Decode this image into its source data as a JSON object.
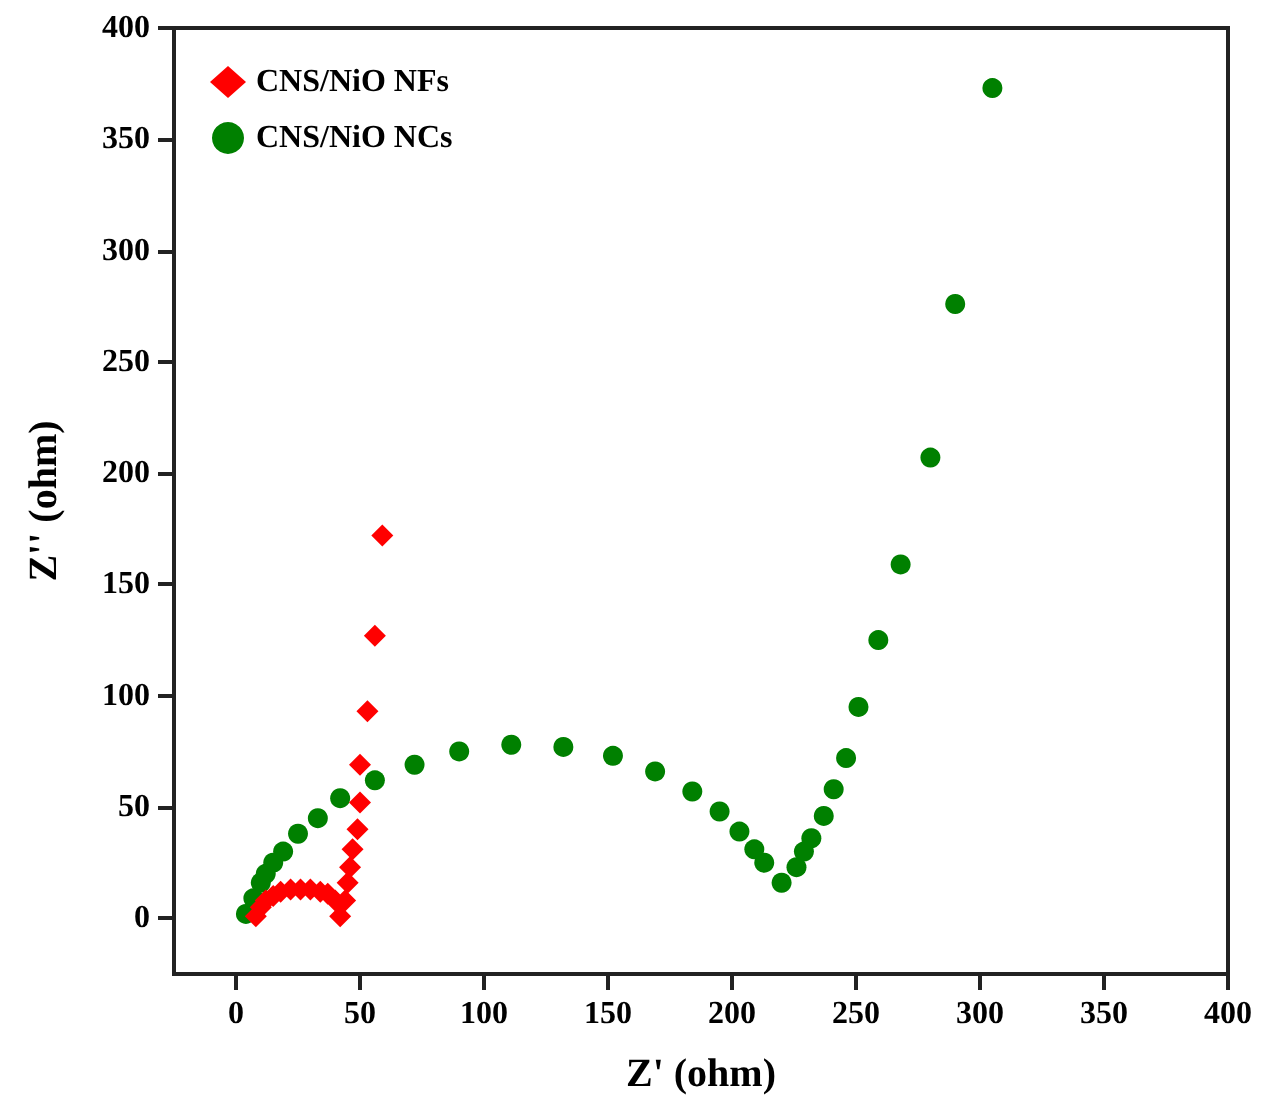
{
  "chart_data": {
    "type": "scatter",
    "xlabel": "Z' (ohm)",
    "ylabel": "Z'' (ohm)",
    "xlim": [
      -25,
      400
    ],
    "xticks": [
      0,
      50,
      100,
      150,
      200,
      250,
      300,
      350,
      400
    ],
    "ylim": [
      -25,
      400
    ],
    "yticks": [
      0,
      50,
      100,
      150,
      200,
      250,
      300,
      350,
      400
    ],
    "grid": false,
    "legend": "top left",
    "series": [
      {
        "name": "CNS/NiO NFs",
        "color": "#ff0000",
        "marker": "diamond",
        "x": [
          8,
          10,
          12,
          15,
          18,
          22,
          26,
          30,
          34,
          37,
          40,
          42,
          44,
          45,
          46,
          47,
          49,
          50,
          50,
          53,
          56,
          59
        ],
        "values": [
          1,
          5,
          8,
          10,
          12,
          13,
          13,
          13,
          12,
          11,
          8,
          1,
          8,
          16,
          23,
          31,
          40,
          52,
          69,
          93,
          127,
          172
        ]
      },
      {
        "name": "CNS/NiO NCs",
        "color": "#008000",
        "marker": "circle",
        "x": [
          4,
          7,
          10,
          12,
          15,
          19,
          25,
          33,
          42,
          56,
          72,
          90,
          111,
          132,
          152,
          169,
          184,
          195,
          203,
          209,
          213,
          220,
          226,
          229,
          232,
          237,
          241,
          246,
          251,
          259,
          268,
          280,
          290,
          305
        ],
        "values": [
          2,
          9,
          16,
          20,
          25,
          30,
          38,
          45,
          54,
          62,
          69,
          75,
          78,
          77,
          73,
          66,
          57,
          48,
          39,
          31,
          25,
          16,
          23,
          30,
          36,
          46,
          58,
          72,
          95,
          125,
          159,
          207,
          276,
          373
        ]
      }
    ]
  }
}
